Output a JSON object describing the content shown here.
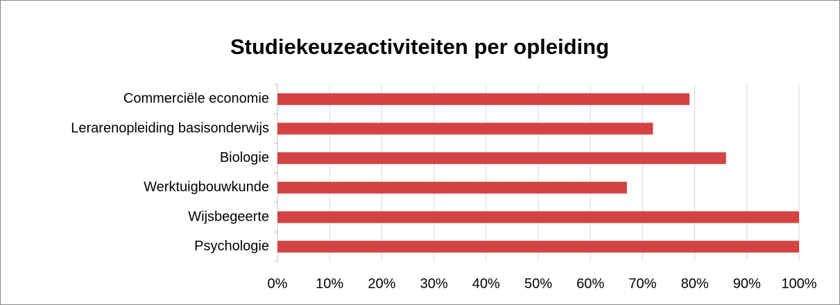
{
  "chart_data": {
    "type": "bar",
    "orientation": "horizontal",
    "title": "Studiekeuzeactiviteiten per opleiding",
    "categories": [
      "Commerciële economie",
      "Lerarenopleiding basisonderwijs",
      "Biologie",
      "Werktuigbouwkunde",
      "Wijsbegeerte",
      "Psychologie"
    ],
    "values": [
      79,
      72,
      86,
      67,
      100,
      100
    ],
    "color": "#d44343",
    "xlim": [
      0,
      100
    ],
    "xticks": [
      {
        "value": 0,
        "label": "0%"
      },
      {
        "value": 10,
        "label": "10%"
      },
      {
        "value": 20,
        "label": "20%"
      },
      {
        "value": 30,
        "label": "30%"
      },
      {
        "value": 40,
        "label": "40%"
      },
      {
        "value": 50,
        "label": "50%"
      },
      {
        "value": 60,
        "label": "60%"
      },
      {
        "value": 70,
        "label": "70%"
      },
      {
        "value": 80,
        "label": "80%"
      },
      {
        "value": 90,
        "label": "90%"
      },
      {
        "value": 100,
        "label": "100%"
      }
    ],
    "grid": true
  }
}
